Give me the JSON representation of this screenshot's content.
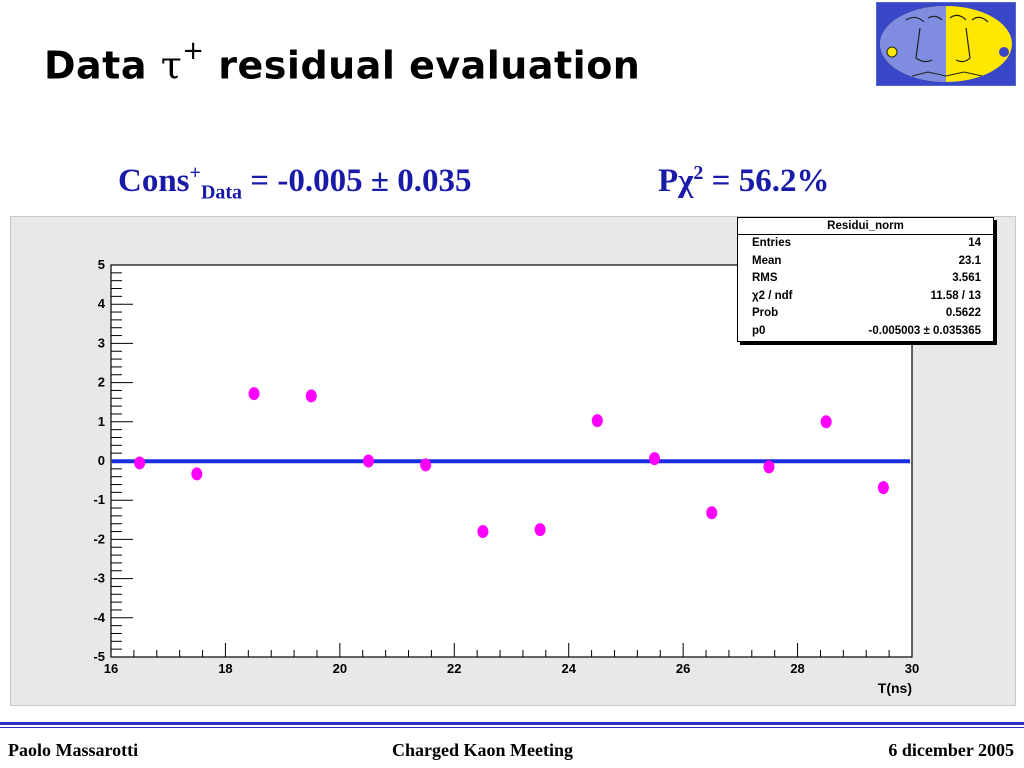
{
  "slide": {
    "title_prefix": "Data ",
    "title_symbol": "τ",
    "title_sup": "+",
    "title_suffix": " residual evaluation"
  },
  "fit_summary": {
    "cons_label": "Cons",
    "cons_sup": "+",
    "cons_sub": "Data",
    "cons_value": " = -0.005 ± 0.035",
    "pchi_label": "Pχ",
    "pchi_sup": "2",
    "pchi_value": " = 56.2%"
  },
  "stats_box": {
    "title": "Residui_norm",
    "rows": [
      {
        "label": "Entries",
        "value": "14"
      },
      {
        "label": "Mean",
        "value": "23.1"
      },
      {
        "label": "RMS",
        "value": "3.561"
      },
      {
        "label": "χ2 / ndf",
        "value": "11.58 / 13"
      },
      {
        "label": "Prob",
        "value": "0.5622"
      },
      {
        "label": "p0",
        "value": "-0.005003 ± 0.035365"
      }
    ]
  },
  "chart_data": {
    "type": "scatter",
    "title": "",
    "xlabel": "T(ns)",
    "ylabel": "",
    "xlim": [
      16,
      30
    ],
    "ylim": [
      -5,
      5
    ],
    "x_ticks": [
      16,
      18,
      20,
      22,
      24,
      26,
      28,
      30
    ],
    "y_ticks": [
      -5,
      -4,
      -3,
      -2,
      -1,
      0,
      1,
      2,
      3,
      4,
      5
    ],
    "grid": false,
    "marker_color": "#ff00ff",
    "fit_color": "#1a2ee0",
    "fit_line": {
      "y": -0.005
    },
    "points": [
      {
        "x": 16.5,
        "y": -0.05
      },
      {
        "x": 17.5,
        "y": -0.33
      },
      {
        "x": 18.5,
        "y": 1.72
      },
      {
        "x": 19.5,
        "y": 1.66
      },
      {
        "x": 20.5,
        "y": 0.0
      },
      {
        "x": 21.5,
        "y": -0.1
      },
      {
        "x": 22.5,
        "y": -1.8
      },
      {
        "x": 23.5,
        "y": -1.75
      },
      {
        "x": 24.5,
        "y": 1.03
      },
      {
        "x": 25.5,
        "y": 0.06
      },
      {
        "x": 26.5,
        "y": -1.32
      },
      {
        "x": 27.5,
        "y": -0.15
      },
      {
        "x": 28.5,
        "y": 1.0
      },
      {
        "x": 29.5,
        "y": -0.68
      }
    ]
  },
  "footer": {
    "author": "Paolo Massarotti",
    "event": "Charged Kaon Meeting",
    "date": "6 dicember 2005"
  }
}
